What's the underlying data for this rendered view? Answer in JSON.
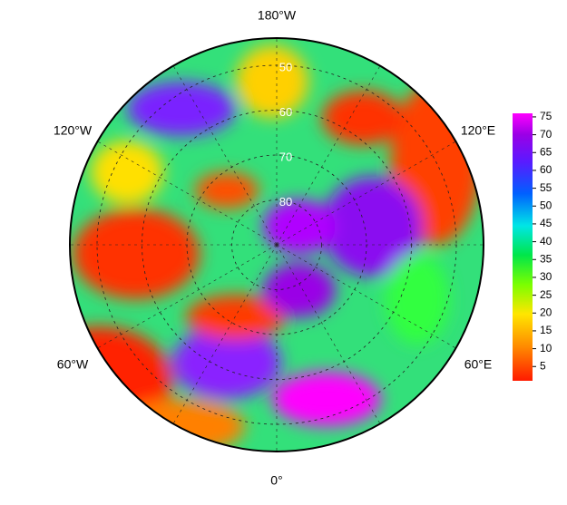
{
  "map": {
    "longitude_labels": [
      "180°W",
      "120°W",
      "120°E",
      "60°W",
      "60°E",
      "0°"
    ],
    "latitude_ticks": [
      50,
      60,
      70,
      80
    ],
    "colorbar": {
      "range": [
        1,
        76
      ],
      "ticks": [
        5,
        10,
        15,
        20,
        25,
        30,
        35,
        40,
        45,
        50,
        55,
        60,
        65,
        70,
        75
      ]
    }
  }
}
